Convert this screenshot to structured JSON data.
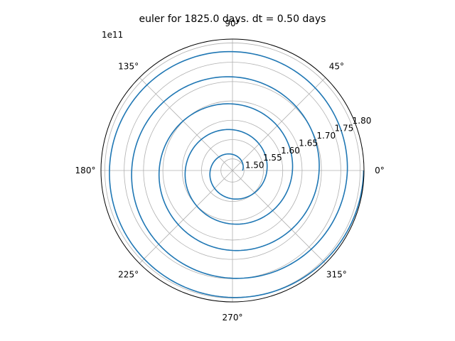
{
  "chart_data": {
    "type": "line",
    "projection": "polar",
    "title": "euler for 1825.0 days. dt = 0.50 days",
    "r_offset_label": "1e11",
    "r_scale": 100000000000.0,
    "rlim": [
      1.47,
      1.81
    ],
    "r_ticks": [
      {
        "value": 1.5,
        "label": "1.50"
      },
      {
        "value": 1.55,
        "label": "1.55"
      },
      {
        "value": 1.6,
        "label": "1.60"
      },
      {
        "value": 1.65,
        "label": "1.65"
      },
      {
        "value": 1.7,
        "label": "1.70"
      },
      {
        "value": 1.75,
        "label": "1.75"
      },
      {
        "value": 1.8,
        "label": "1.80"
      }
    ],
    "theta_ticks": [
      {
        "deg": 0,
        "label": "0°"
      },
      {
        "deg": 45,
        "label": "45°"
      },
      {
        "deg": 90,
        "label": "90°"
      },
      {
        "deg": 135,
        "label": "135°"
      },
      {
        "deg": 180,
        "label": "180°"
      },
      {
        "deg": 225,
        "label": "225°"
      },
      {
        "deg": 270,
        "label": "270°"
      },
      {
        "deg": 315,
        "label": "315°"
      }
    ],
    "grid": true,
    "series": [
      {
        "color": "#1f77b4",
        "theta_start_deg": 0,
        "revolutions": 5,
        "r_per_revolution": [
          1.496,
          1.559,
          1.625,
          1.694,
          1.767,
          1.809
        ]
      }
    ]
  }
}
